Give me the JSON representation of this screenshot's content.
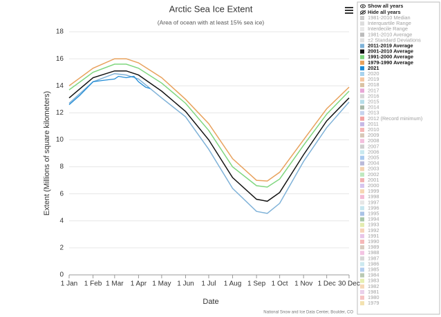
{
  "chart_data": {
    "type": "line",
    "title": "Arctic Sea Ice Extent",
    "subtitle": "(Area of ocean with at least 15% sea ice)",
    "y_label": "Extent (Millions of square kilometers)",
    "x_label": "Date",
    "credit": "National Snow and Ice Data Center, Boulder, CO",
    "xlim": [
      1,
      364
    ],
    "xticks": [
      {
        "value": 1,
        "label": "1 Jan"
      },
      {
        "value": 32,
        "label": "1 Feb"
      },
      {
        "value": 60,
        "label": "1 Mar"
      },
      {
        "value": 91,
        "label": "1 Apr"
      },
      {
        "value": 121,
        "label": "1 May"
      },
      {
        "value": 152,
        "label": "1 Jun"
      },
      {
        "value": 182,
        "label": "1 Jul"
      },
      {
        "value": 213,
        "label": "1 Aug"
      },
      {
        "value": 244,
        "label": "1 Sep"
      },
      {
        "value": 274,
        "label": "1 Oct"
      },
      {
        "value": 305,
        "label": "1 Nov"
      },
      {
        "value": 335,
        "label": "1 Dec"
      },
      {
        "value": 364,
        "label": "30 Dec"
      }
    ],
    "ylim": [
      0,
      18
    ],
    "yticks": [
      0,
      2,
      4,
      6,
      8,
      10,
      12,
      14,
      16,
      18
    ],
    "grid": true,
    "x": [
      1,
      32,
      60,
      75,
      91,
      121,
      152,
      182,
      213,
      244,
      258,
      274,
      305,
      335,
      364
    ],
    "series": [
      {
        "name": "2011-2019 Average",
        "color": "#7fb2d8",
        "values": [
          12.7,
          14.3,
          14.9,
          14.8,
          14.5,
          13.1,
          11.7,
          9.3,
          6.4,
          4.7,
          4.55,
          5.3,
          8.4,
          10.9,
          12.8
        ]
      },
      {
        "name": "2001-2010 Average",
        "color": "#111111",
        "values": [
          13.1,
          14.6,
          15.1,
          15.1,
          14.8,
          13.6,
          12.1,
          10.0,
          7.2,
          5.6,
          5.45,
          6.1,
          8.9,
          11.4,
          13.1
        ]
      },
      {
        "name": "1991-2000 Average",
        "color": "#7ed67e",
        "values": [
          13.7,
          15.0,
          15.6,
          15.6,
          15.3,
          14.2,
          12.7,
          10.7,
          8.0,
          6.6,
          6.5,
          7.1,
          9.6,
          11.9,
          13.6
        ]
      },
      {
        "name": "1979-1990 Average",
        "color": "#e8a15c",
        "values": [
          14.0,
          15.3,
          16.0,
          16.0,
          15.7,
          14.6,
          13.0,
          11.2,
          8.6,
          7.0,
          6.95,
          7.6,
          10.0,
          12.3,
          13.9
        ]
      },
      {
        "name": "2021",
        "color": "#1f8bd6",
        "x": [
          1,
          15,
          32,
          45,
          60,
          65,
          75,
          85,
          91,
          100,
          106
        ],
        "values": [
          12.6,
          13.3,
          14.3,
          14.4,
          14.5,
          14.7,
          14.6,
          14.7,
          14.3,
          13.9,
          13.8
        ]
      }
    ],
    "legend": {
      "show_all": "Show all years",
      "hide_all": "Hide all years",
      "before": [
        {
          "label": "1981-2010 Median",
          "color": "#cccccc"
        },
        {
          "label": "Interquartile Range",
          "color": "#dddddd"
        },
        {
          "label": "Interdecile Range",
          "color": "#e8e8e8"
        },
        {
          "label": "1981-2010 Average",
          "color": "#bbbbbb"
        },
        {
          "label": "±2 Standard Deviations",
          "color": "#e0e0e0"
        }
      ],
      "after": [
        {
          "label": "2020",
          "color": "#a9d3ee"
        },
        {
          "label": "2019",
          "color": "#f4c7a3"
        },
        {
          "label": "2018",
          "color": "#d9c2a3"
        },
        {
          "label": "2017",
          "color": "#e7a7d6"
        },
        {
          "label": "2016",
          "color": "#d6d6d6"
        },
        {
          "label": "2015",
          "color": "#b6dde8"
        },
        {
          "label": "2014",
          "color": "#a9b9a9"
        },
        {
          "label": "2013",
          "color": "#c6d4ee"
        },
        {
          "label": "2012 (Record minimum)",
          "color": "#f2a3a3"
        },
        {
          "label": "2011",
          "color": "#c7b8e6"
        },
        {
          "label": "2010",
          "color": "#f5b6b6"
        },
        {
          "label": "2009",
          "color": "#d8c8b8"
        },
        {
          "label": "2008",
          "color": "#f3c0dd"
        },
        {
          "label": "2007",
          "color": "#cfcfcf"
        },
        {
          "label": "2006",
          "color": "#c8e8ef"
        },
        {
          "label": "2005",
          "color": "#a9c9ee"
        },
        {
          "label": "2004",
          "color": "#b9b9d9"
        },
        {
          "label": "2003",
          "color": "#f4d2b0"
        },
        {
          "label": "2002",
          "color": "#bfe9bf"
        },
        {
          "label": "2001",
          "color": "#f1b0b0"
        },
        {
          "label": "2000",
          "color": "#d8c6ee"
        },
        {
          "label": "1999",
          "color": "#f6d6b3"
        },
        {
          "label": "1998",
          "color": "#f3bcd6"
        },
        {
          "label": "1997",
          "color": "#e6e6e6"
        },
        {
          "label": "1996",
          "color": "#c6e6ef"
        },
        {
          "label": "1995",
          "color": "#a9c3e6"
        },
        {
          "label": "1994",
          "color": "#a9c6a9"
        },
        {
          "label": "1993",
          "color": "#e3ecb0"
        },
        {
          "label": "1992",
          "color": "#f6d3b8"
        },
        {
          "label": "1991",
          "color": "#e8c6e8"
        },
        {
          "label": "1990",
          "color": "#f5b8b8"
        },
        {
          "label": "1989",
          "color": "#d9ccc0"
        },
        {
          "label": "1988",
          "color": "#f3c4e3"
        },
        {
          "label": "1987",
          "color": "#d6d6d6"
        },
        {
          "label": "1986",
          "color": "#cde9f0"
        },
        {
          "label": "1985",
          "color": "#b3cdef"
        },
        {
          "label": "1984",
          "color": "#b9c9b3"
        },
        {
          "label": "1983",
          "color": "#e6efb0"
        },
        {
          "label": "1982",
          "color": "#f6d9b8"
        },
        {
          "label": "1981",
          "color": "#ead0ea"
        },
        {
          "label": "1980",
          "color": "#f6c3c3"
        },
        {
          "label": "1979",
          "color": "#f3e2b0"
        }
      ]
    }
  }
}
